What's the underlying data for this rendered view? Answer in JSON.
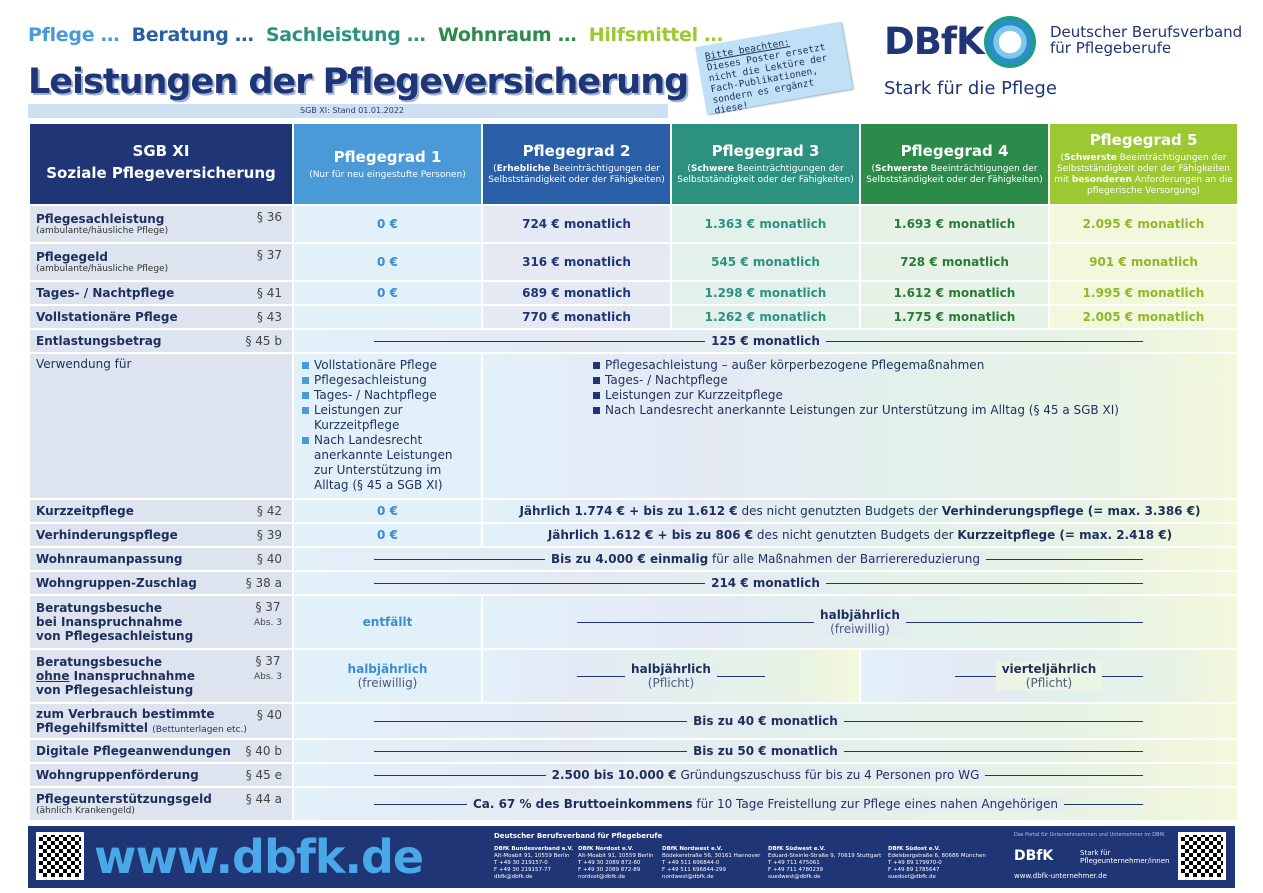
{
  "tagline": [
    {
      "text": "Pflege …",
      "color": "#4a9ad8"
    },
    {
      "text": "Beratung …",
      "color": "#2a5fa8"
    },
    {
      "text": "Sachleistung …",
      "color": "#2c917f"
    },
    {
      "text": "Wohnraum …",
      "color": "#2c8a4a"
    },
    {
      "text": "Hilfsmittel …",
      "color": "#9cc832"
    }
  ],
  "title": "Leistungen der Pflegeversicherung",
  "stand": "SGB XI: Stand 01.01.2022",
  "note": {
    "head": "Bitte beachten:",
    "body": "Dieses Poster ersetzt nicht die Lektüre der Fach-Publikationen, sondern es ergänzt diese!"
  },
  "logo": {
    "abbr": "DBfK",
    "org_line1": "Deutscher Berufsverband",
    "org_line2": "für Pflegeberufe",
    "slogan": "Stark für die Pflege"
  },
  "header": {
    "col0_line1": "SGB XI",
    "col0_line2": "Soziale Pflegeversicherung",
    "pg1": {
      "title": "Pflegegrad 1",
      "sub": "(Nur für neu eingestufte Personen)"
    },
    "pg2": {
      "title": "Pflegegrad 2",
      "sub_b": "Erhebliche",
      "sub": " Beeinträchtigungen der Selbstständigkeit oder der Fähigkeiten)"
    },
    "pg3": {
      "title": "Pflegegrad 3",
      "sub_b": "Schwere",
      "sub": " Beeinträchtigungen der Selbstständigkeit oder der Fähigkeiten)"
    },
    "pg4": {
      "title": "Pflegegrad 4",
      "sub_b": "Schwerste",
      "sub": " Beeinträchtigungen der Selbstständigkeit oder der Fähigkeiten)"
    },
    "pg5": {
      "title": "Pflegegrad 5",
      "sub_b": "Schwerste",
      "sub": " Beeinträchtigungen der Selbstständigkeit oder der Fähigkeiten mit ",
      "sub_b2": "besonderen",
      "sub2": " Anforderungen an die pflegerische Versorgung)"
    }
  },
  "rows": {
    "sachleistung": {
      "label": "Pflegesachleistung",
      "small": "(ambulante/häusliche Pflege)",
      "para": "§ 36",
      "v": [
        "0 €",
        "724 € monatlich",
        "1.363 € monatlich",
        "1.693 € monatlich",
        "2.095 € monatlich"
      ]
    },
    "pflegegeld": {
      "label": "Pflegegeld",
      "small": "(ambulante/häusliche Pflege)",
      "para": "§ 37",
      "v": [
        "0 €",
        "316 € monatlich",
        "545 € monatlich",
        "728 € monatlich",
        "901 € monatlich"
      ]
    },
    "tages": {
      "label": "Tages- / Nachtpflege",
      "para": "§ 41",
      "v": [
        "0 €",
        "689 € monatlich",
        "1.298 € monatlich",
        "1.612 € monatlich",
        "1.995 € monatlich"
      ]
    },
    "voll": {
      "label": "Vollstationäre Pflege",
      "para": "§ 43",
      "v": [
        "",
        "770 € monatlich",
        "1.262 € monatlich",
        "1.775 € monatlich",
        "2.005 € monatlich"
      ]
    },
    "entlastung": {
      "label": "Entlastungsbetrag",
      "para": "§ 45 b",
      "v": "125 € monatlich"
    },
    "verwendung": {
      "label": "Verwendung für",
      "list1": [
        "Vollstationäre Pflege",
        "Pflegesachleistung",
        "Tages- / Nachtpflege",
        "Leistungen zur Kurzzeitpflege",
        "Nach Landesrecht anerkannte Leistungen zur Unterstützung im Alltag (§ 45 a SGB XI)"
      ],
      "list2": [
        "Pflegesachleistung – außer körperbezogene Pflegemaßnahmen",
        "Tages- / Nachtpflege",
        "Leistungen zur Kurzzeitpflege",
        "Nach Landesrecht anerkannte Leistungen zur Unterstützung im Alltag (§ 45 a SGB XI)"
      ]
    },
    "kurzzeit": {
      "label": "Kurzzeitpflege",
      "para": "§ 42",
      "v1": "0 €",
      "a": "Jährlich 1.774 € + bis zu 1.612 €",
      "b": " des nicht genutzten Budgets der ",
      "c": "Verhinderungspflege",
      "d": " (= max. 3.386 €)"
    },
    "verhinderung": {
      "label": "Verhinderungspflege",
      "para": "§ 39",
      "v1": "0 €",
      "a": "Jährlich 1.612 € + bis zu 806 €",
      "b": " des nicht genutzten Budgets der ",
      "c": "Kurzzeitpflege",
      "d": " (= max. 2.418 €)"
    },
    "wohnraum": {
      "label": "Wohnraumanpassung",
      "para": "§ 40",
      "a": "Bis zu 4.000 € einmalig",
      "b": " für alle Maßnahmen der Barrierereduzierung"
    },
    "wohngruppe": {
      "label": "Wohngruppen-Zuschlag",
      "para": "§ 38 a",
      "v": "214 € monatlich"
    },
    "beratung1": {
      "label1": "Beratungsbesuche",
      "label2": "bei Inanspruchnahme",
      "label3": "von Pflegesachleistung",
      "para": "§ 37",
      "para2": "Abs. 3",
      "v1": "entfällt",
      "v": "halbjährlich",
      "vsub": "(freiwillig)"
    },
    "beratung2": {
      "label1": "Beratungsbesuche",
      "label2u": "ohne",
      "label2": " Inanspruchnahme",
      "label3": "von Pflegesachleistung",
      "para": "§ 37",
      "para2": "Abs. 3",
      "v1": "halbjährlich",
      "v1sub": "(freiwillig)",
      "v2": "halbjährlich",
      "v2sub": "(Pflicht)",
      "v3": "vierteljährlich",
      "v3sub": "(Pflicht)"
    },
    "hilfsmittel": {
      "label1": "zum Verbrauch bestimmte",
      "label2": "Pflegehilfsmittel",
      "small": "(Bettunterlagen etc.)",
      "para": "§ 40",
      "v": "Bis zu 40 € monatlich"
    },
    "digital": {
      "label": "Digitale Pflegeanwendungen",
      "para": "§ 40 b",
      "v": "Bis zu 50 € monatlich"
    },
    "wgfoerderung": {
      "label": "Wohngruppenförderung",
      "para": "§ 45 e",
      "a": "2.500 bis 10.000 €",
      "b": " Gründungszuschuss für bis zu 4 Personen pro WG"
    },
    "unterstuetzung": {
      "label": "Pflegeunterstützungsgeld",
      "small": "(ähnlich Krankengeld)",
      "para": "§ 44 a",
      "a": "Ca. 67 % des Bruttoeinkommens",
      "b": " für 10 Tage Freistellung zur Pflege eines nahen Angehörigen"
    }
  },
  "footer": {
    "url": "www.dbfk.de",
    "title": "Deutscher Berufsverband für Pflegeberufe",
    "offices": [
      {
        "name": "DBfK Bundesverband e.V.",
        "l1": "Alt-Moabit 91, 10559 Berlin",
        "l2": "T +49 30 219157-0",
        "l3": "F +49 30 219157-77",
        "l4": "dbfk@dbfk.de"
      },
      {
        "name": "DBfK Nordost e.V.",
        "l1": "Alt-Moabit 91, 10559 Berlin",
        "l2": "T +49 30 2089 872-60",
        "l3": "F +49 30 2089 872-89",
        "l4": "nordost@dbfk.de"
      },
      {
        "name": "DBfK Nordwest e.V.",
        "l1": "Bödekerstraße 56, 30161 Hannover",
        "l2": "T +49 511 696844-0",
        "l3": "F +49 511 696844-299",
        "l4": "nordwest@dbfk.de"
      },
      {
        "name": "DBfK Südwest e.V.",
        "l1": "Eduard-Steinle-Straße 9, 70619 Stuttgart",
        "l2": "T +49 711 475061",
        "l3": "F +49 711 4780239",
        "l4": "suedwest@dbfk.de"
      },
      {
        "name": "DBfK Südost e.V.",
        "l1": "Edelsbergstraße 6, 80686 München",
        "l2": "T +49 89 179970-0",
        "l3": "F +49 89 1785647",
        "l4": "suedost@dbfk.de"
      }
    ],
    "portal": "Das Portal für Unternehmerinnen und Unternehmer im DBfK",
    "logo2": "DBfK",
    "logo2_l1": "Stark für",
    "logo2_l2": "Pflegeunternehmer/innen",
    "url2": "www.dbfk-unternehmer.de"
  }
}
